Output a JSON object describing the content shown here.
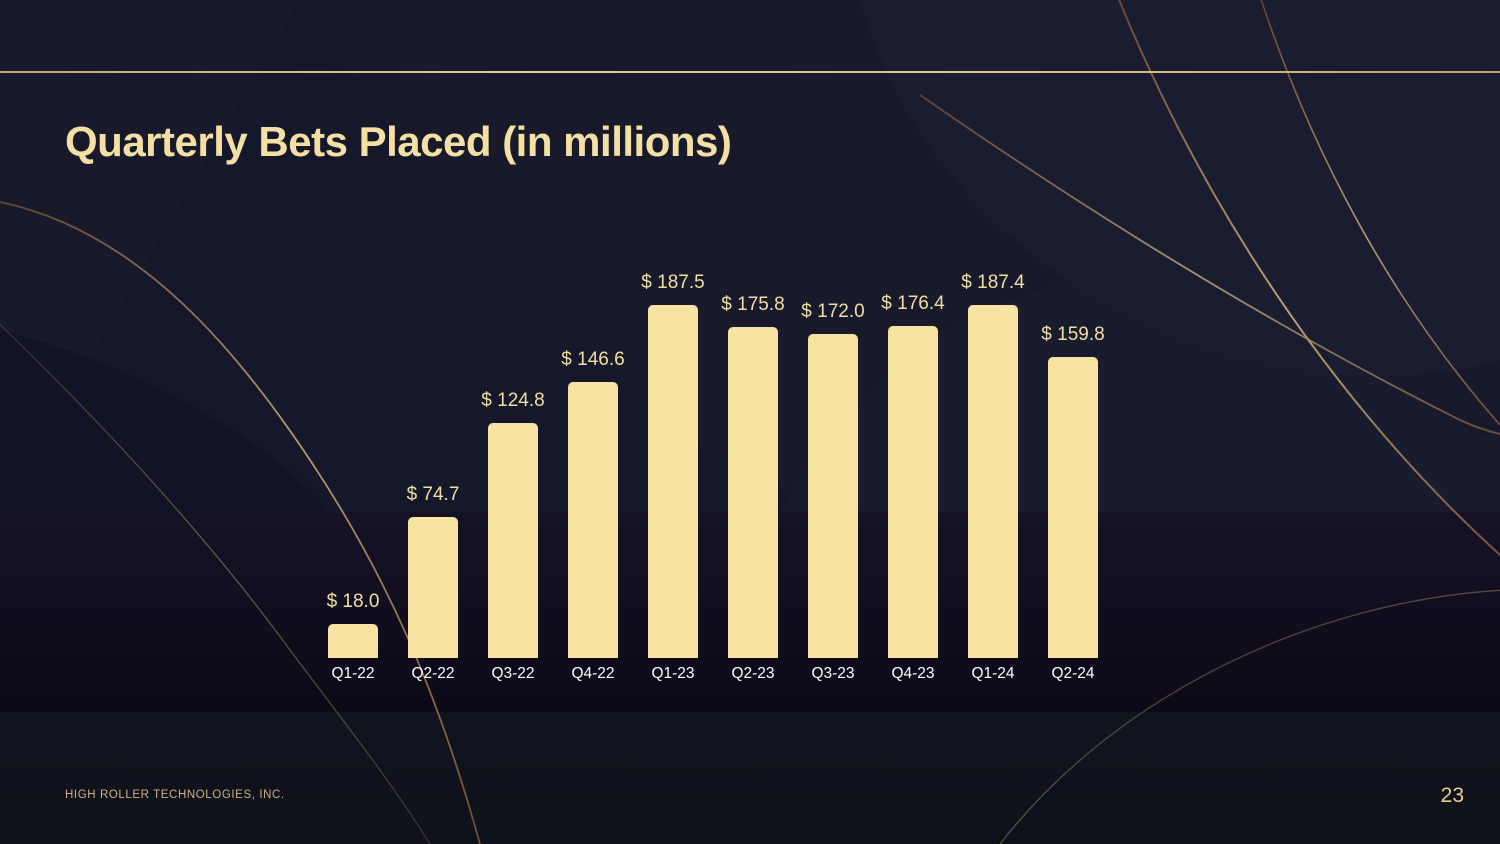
{
  "slide": {
    "title": "Quarterly Bets Placed (in millions)",
    "footer": "HIGH ROLLER TECHNOLOGIES, INC.",
    "page_number": "23"
  },
  "colors": {
    "background": "#181A2B",
    "band_middle_dark": "#110E1F",
    "band_lower": "#0F141F",
    "bar_fill": "#F8E3A3",
    "title_text": "#F4E0A4",
    "value_label_text": "#F2DFA4",
    "category_label_text": "#FDFDFD",
    "top_rule_gold": "#E5C98B",
    "footer_text": "#CDB287",
    "page_number_text": "#E9CD93",
    "decor_line_bronze": "#8A5A3C",
    "decor_line_gold": "#D9BC82"
  },
  "chart_data": {
    "type": "bar",
    "title": "Quarterly Bets Placed (in millions)",
    "categories": [
      "Q1-22",
      "Q2-22",
      "Q3-22",
      "Q4-22",
      "Q1-23",
      "Q2-23",
      "Q3-23",
      "Q4-23",
      "Q1-24",
      "Q2-24"
    ],
    "values": [
      18.0,
      74.7,
      124.8,
      146.6,
      187.5,
      175.8,
      172.0,
      176.4,
      187.4,
      159.8
    ],
    "labels": [
      "$ 18.0",
      "$ 74.7",
      "$ 124.8",
      "$ 146.6",
      "$ 187.5",
      "$ 175.8",
      "$ 172.0",
      "$ 176.4",
      "$ 187.4",
      "$ 159.8"
    ],
    "value_prefix": "$ ",
    "xlabel": "",
    "ylabel": "",
    "ylim": [
      0,
      200
    ],
    "grid": false,
    "legend": null,
    "bar_color": "#F8E3A3",
    "label_position": "above-bar"
  }
}
